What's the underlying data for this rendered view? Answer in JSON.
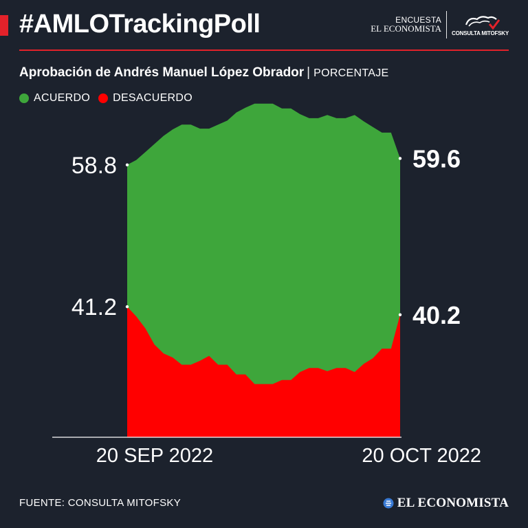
{
  "header": {
    "title": "#AMLOTrackingPoll",
    "brand_line1": "ENCUESTA",
    "brand_line2": "EL ECONOMISTA",
    "partner_label": "CONSULTA MITOFSKY"
  },
  "colors": {
    "background": "#1c222d",
    "accent": "#e3222a",
    "acuerdo": "#3ea63b",
    "desacuerdo": "#ff0000",
    "text": "#ffffff"
  },
  "chart_data": {
    "type": "area",
    "title": "Aprobación de Andrés Manuel López Obrador",
    "unit_label": "PORCENTAJE",
    "legend_position": "top-left",
    "grid": false,
    "ylim": [
      25,
      68
    ],
    "x_tick_labels": [
      "20 SEP 2022",
      "20 OCT 2022"
    ],
    "x": [
      "2022-09-20",
      "2022-09-21",
      "2022-09-22",
      "2022-09-23",
      "2022-09-24",
      "2022-09-25",
      "2022-09-26",
      "2022-09-27",
      "2022-09-28",
      "2022-09-29",
      "2022-09-30",
      "2022-10-01",
      "2022-10-02",
      "2022-10-03",
      "2022-10-04",
      "2022-10-05",
      "2022-10-06",
      "2022-10-07",
      "2022-10-08",
      "2022-10-09",
      "2022-10-10",
      "2022-10-11",
      "2022-10-12",
      "2022-10-13",
      "2022-10-14",
      "2022-10-15",
      "2022-10-16",
      "2022-10-17",
      "2022-10-18",
      "2022-10-19",
      "2022-10-20"
    ],
    "series": [
      {
        "name": "ACUERDO",
        "values": [
          58.8,
          59.4,
          60.4,
          61.4,
          62.4,
          63.2,
          63.8,
          63.8,
          63.3,
          63.3,
          63.8,
          64.3,
          65.3,
          65.9,
          66.4,
          66.4,
          66.4,
          65.8,
          65.8,
          65.1,
          64.6,
          64.6,
          65.0,
          64.6,
          64.6,
          65.0,
          64.2,
          63.5,
          62.8,
          62.8,
          59.6
        ]
      },
      {
        "name": "DESACUERDO",
        "values": [
          41.2,
          40.0,
          38.5,
          36.5,
          35.4,
          34.9,
          34.0,
          34.0,
          34.5,
          35.1,
          34.0,
          34.0,
          32.8,
          32.8,
          31.6,
          31.6,
          31.6,
          32.1,
          32.1,
          33.1,
          33.6,
          33.6,
          33.2,
          33.6,
          33.6,
          33.1,
          34.1,
          34.8,
          36.0,
          36.0,
          40.2
        ]
      }
    ],
    "labels": {
      "acuerdo_start": "58.8",
      "acuerdo_end": "59.6",
      "desacuerdo_start": "41.2",
      "desacuerdo_end": "40.2"
    }
  },
  "footer": {
    "source": "FUENTE: CONSULTA MITOFSKY",
    "brand": "EL ECONOMISTA"
  }
}
